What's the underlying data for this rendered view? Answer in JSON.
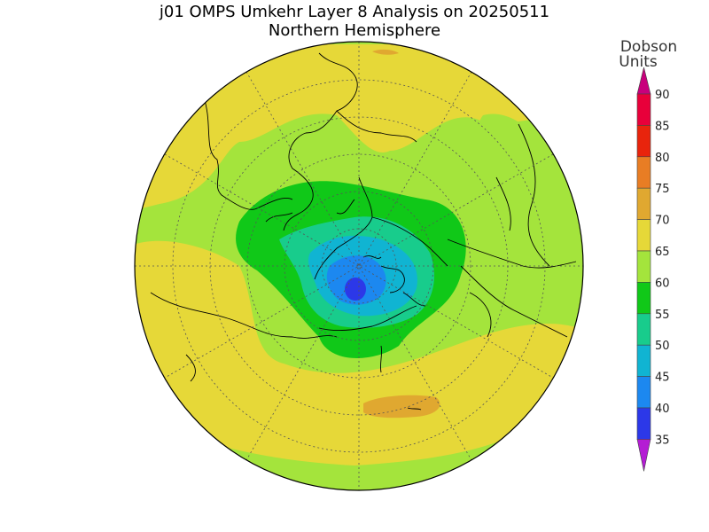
{
  "header": {
    "title": "j01 OMPS Umkehr Layer 8 Analysis on 20250511",
    "subtitle": "Northern Hemisphere"
  },
  "legend": {
    "unit_line1": "Dobson",
    "unit_line2": "Units",
    "levels": [
      {
        "value": "90",
        "color": "#e8003a"
      },
      {
        "value": "85",
        "color": "#e8240c"
      },
      {
        "value": "80",
        "color": "#e87d24"
      },
      {
        "value": "75",
        "color": "#e0a830"
      },
      {
        "value": "70",
        "color": "#e6d838"
      },
      {
        "value": "65",
        "color": "#a4e43c"
      },
      {
        "value": "60",
        "color": "#10c818"
      },
      {
        "value": "55",
        "color": "#18cc8c"
      },
      {
        "value": "50",
        "color": "#10b4d2"
      },
      {
        "value": "45",
        "color": "#1c88f0"
      },
      {
        "value": "40",
        "color": "#2c38e8"
      },
      {
        "value": "35",
        "color": "#7010e0"
      }
    ],
    "top_arrow_color": "#c8007c",
    "bottom_arrow_color": "#b41cd4"
  },
  "map": {
    "projection": "north-polar-stereographic",
    "background_color": "#a4e43c",
    "region_colors": {
      "outer_band": "#e6d838",
      "mid": "#a4e43c",
      "inner_ring": "#10c818",
      "core": "#18cc8c",
      "pole": "#10b4d2",
      "deep": "#1c88f0",
      "min": "#2c38e8",
      "anomaly": "#e0a830"
    }
  }
}
